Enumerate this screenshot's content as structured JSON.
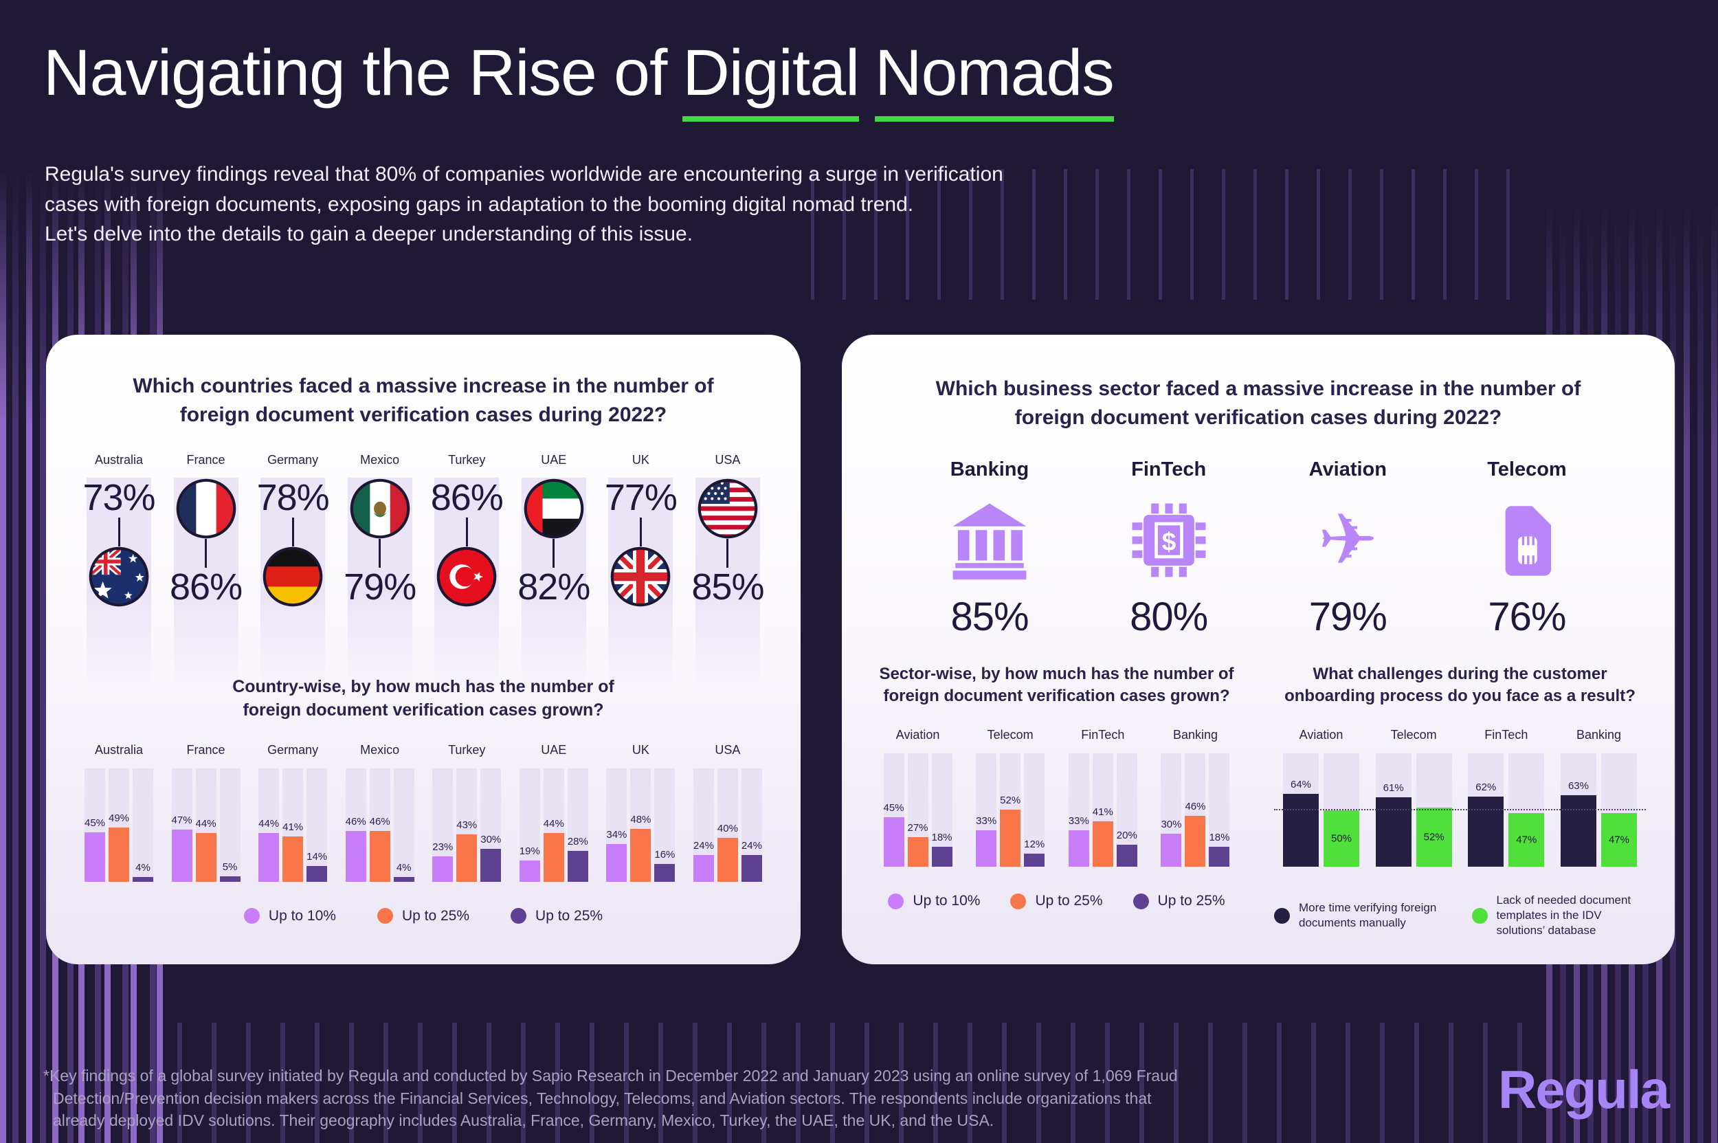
{
  "page": {
    "title_prefix": "Navigating the Rise of",
    "title_word_1": "Digital",
    "title_word_2": "Nomads",
    "subtitle_lines": [
      "Regula's survey findings reveal that 80% of companies worldwide are encountering a surge in verification",
      "cases with foreign documents, exposing gaps in adaptation to the booming digital nomad trend.",
      "Let's delve into the details to gain a deeper understanding of this issue."
    ],
    "footnote_lines": [
      "*Key findings of a global survey initiated by Regula and conducted by Sapio Research in December 2022 and January 2023 using an online survey of 1,069 Fraud",
      "Detection/Prevention decision makers across the Financial Services, Technology, Telecoms, and Aviation sectors. The respondents include organizations that",
      "already deployed IDV solutions. Their geography includes Australia, France, Germany, Mexico, Turkey, the UAE, the UK, and the USA."
    ],
    "brand": "Regula"
  },
  "colors": {
    "accent_green": "#3fd944",
    "bar_up10": "#c87ef8",
    "bar_up25": "#f8764a",
    "bar_up25b": "#5e4190",
    "challenge_dark": "#252041",
    "challenge_green": "#50e03c",
    "icon_purple": "#b886f8"
  },
  "icons": {
    "plane_glyph": "✈"
  },
  "left_card": {
    "title": "Which countries faced a massive increase in the number of foreign document verification cases during 2022?",
    "growth_question": "Country-wise, by how much has the number of foreign document verification cases grown?",
    "legend": [
      {
        "label": "Up to 10%",
        "color": "#c87ef8"
      },
      {
        "label": "Up to 25%",
        "color": "#f8764a"
      },
      {
        "label": "Up to 25%",
        "color": "#5e4190"
      }
    ],
    "flags": [
      "australia-flag-icon",
      "france-flag-icon",
      "germany-flag-icon",
      "mexico-flag-icon",
      "turkey-flag-icon",
      "uae-flag-icon",
      "uk-flag-icon",
      "usa-flag-icon"
    ]
  },
  "right_card": {
    "title": "Which business sector faced a massive increase in the number of foreign document verification cases during 2022?",
    "growth_question": "Sector-wise, by how much has the number of foreign document verification cases grown?",
    "challenges_question": "What challenges during the customer onboarding process do you face as a result?",
    "sector_icons": [
      "bank-icon",
      "fintech-chip-icon",
      "plane-icon",
      "sim-card-icon"
    ],
    "legend": [
      {
        "label": "Up to 10%",
        "color": "#c87ef8"
      },
      {
        "label": "Up to 25%",
        "color": "#f8764a"
      },
      {
        "label": "Up to 25%",
        "color": "#5e4190"
      }
    ],
    "challenges_legend": [
      {
        "label": "More time verifying foreign documents manually",
        "color": "#252041"
      },
      {
        "label": "Lack of needed document templates in the IDV solutions’ database",
        "color": "#50e03c"
      }
    ]
  },
  "chart_data": [
    {
      "type": "bar",
      "title": "Which countries faced a massive increase in the number of foreign document verification cases during 2022?",
      "categories": [
        "Australia",
        "France",
        "Germany",
        "Mexico",
        "Turkey",
        "UAE",
        "UK",
        "USA"
      ],
      "values": [
        73,
        86,
        78,
        79,
        86,
        82,
        77,
        85
      ],
      "unit": "%"
    },
    {
      "type": "bar",
      "title": "Country-wise, by how much has the number of foreign document verification cases grown?",
      "categories": [
        "Australia",
        "France",
        "Germany",
        "Mexico",
        "Turkey",
        "UAE",
        "UK",
        "USA"
      ],
      "series": [
        {
          "name": "Up to 10%",
          "values": [
            45,
            47,
            44,
            46,
            23,
            19,
            34,
            24
          ]
        },
        {
          "name": "Up to 25%",
          "values": [
            49,
            44,
            41,
            46,
            43,
            44,
            48,
            40
          ]
        },
        {
          "name": "Up to 25%",
          "values": [
            4,
            5,
            14,
            4,
            30,
            28,
            16,
            24
          ]
        }
      ],
      "unit": "%",
      "ylim": [
        0,
        100
      ],
      "legend_position": "bottom"
    },
    {
      "type": "bar",
      "title": "Which business sector faced a massive increase in the number of foreign document verification cases during 2022?",
      "categories": [
        "Banking",
        "FinTech",
        "Aviation",
        "Telecom"
      ],
      "values": [
        85,
        80,
        79,
        76
      ],
      "unit": "%"
    },
    {
      "type": "bar",
      "title": "Sector-wise, by how much has the number of foreign document verification cases grown?",
      "categories": [
        "Aviation",
        "Telecom",
        "FinTech",
        "Banking"
      ],
      "series": [
        {
          "name": "Up to 10%",
          "values": [
            45,
            33,
            33,
            30
          ]
        },
        {
          "name": "Up to 25%",
          "values": [
            27,
            52,
            41,
            46
          ]
        },
        {
          "name": "Up to 25%",
          "values": [
            18,
            12,
            20,
            18
          ]
        }
      ],
      "unit": "%",
      "ylim": [
        0,
        100
      ],
      "legend_position": "bottom"
    },
    {
      "type": "bar",
      "title": "What challenges during the customer onboarding process do you face as a result?",
      "categories": [
        "Aviation",
        "Telecom",
        "FinTech",
        "Banking"
      ],
      "series": [
        {
          "name": "More time verifying foreign documents manually",
          "values": [
            64,
            61,
            62,
            63
          ]
        },
        {
          "name": "Lack of needed document templates in the IDV solutions’ database",
          "values": [
            50,
            52,
            47,
            47
          ]
        }
      ],
      "reference_line": 50,
      "unit": "%",
      "ylim": [
        0,
        100
      ],
      "legend_position": "bottom"
    }
  ]
}
